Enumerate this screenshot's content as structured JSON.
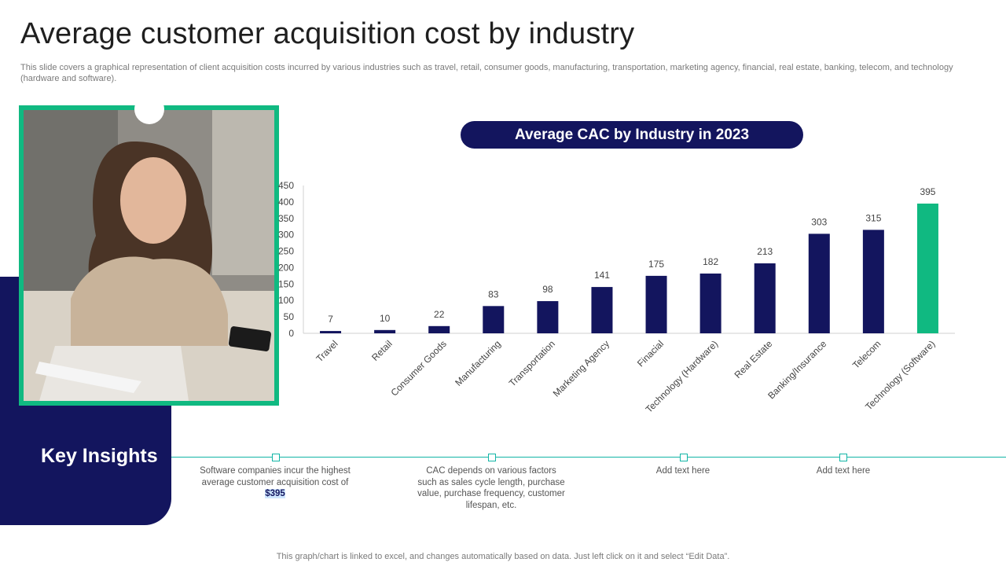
{
  "header": {
    "title": "Average customer acquisition cost by industry",
    "subtitle": "This slide covers a graphical representation of client acquisition costs incurred by various industries such as travel, retail, consumer goods, manufacturing, transportation, marketing agency, financial, real estate, banking, telecom, and technology (hardware and software)."
  },
  "chart_pill": "Average CAC by Industry in 2023",
  "colors": {
    "navy": "#13155e",
    "accent_green": "#10b981",
    "teal_line": "#12b5a6"
  },
  "insights": {
    "title": "Key Insights",
    "items": [
      {
        "text_before": "Software companies incur the highest average customer acquisition cost of ",
        "highlight": "$395"
      },
      {
        "text_before": "CAC depends on various factors such as sales cycle length, purchase value, purchase frequency, customer lifespan, etc.",
        "highlight": ""
      },
      {
        "text_before": "Add text here",
        "highlight": ""
      },
      {
        "text_before": "Add text here",
        "highlight": ""
      }
    ]
  },
  "footer": "This graph/chart is linked to excel,  and changes automatically based on data. Just left click on it and select “Edit Data”.",
  "chart_data": {
    "type": "bar",
    "title": "Average CAC by Industry in 2023",
    "categories": [
      "Travel",
      "Retail",
      "Consumer Goods",
      "Manufacturing",
      "Transportation",
      "Marketing Agency",
      "Finacial",
      "Technology (Hardware)",
      "Real Estate",
      "Banking/Insurance",
      "Telecom",
      "Technology (Software)"
    ],
    "values": [
      7,
      10,
      22,
      83,
      98,
      141,
      175,
      182,
      213,
      303,
      315,
      395
    ],
    "bar_colors": [
      "#13155e",
      "#13155e",
      "#13155e",
      "#13155e",
      "#13155e",
      "#13155e",
      "#13155e",
      "#13155e",
      "#13155e",
      "#13155e",
      "#13155e",
      "#10b981"
    ],
    "ylim": [
      0,
      450
    ],
    "yticks": [
      0,
      50,
      100,
      150,
      200,
      250,
      300,
      350,
      400,
      450
    ],
    "data_labels": true,
    "grid": false,
    "xlabel": "",
    "ylabel": ""
  }
}
